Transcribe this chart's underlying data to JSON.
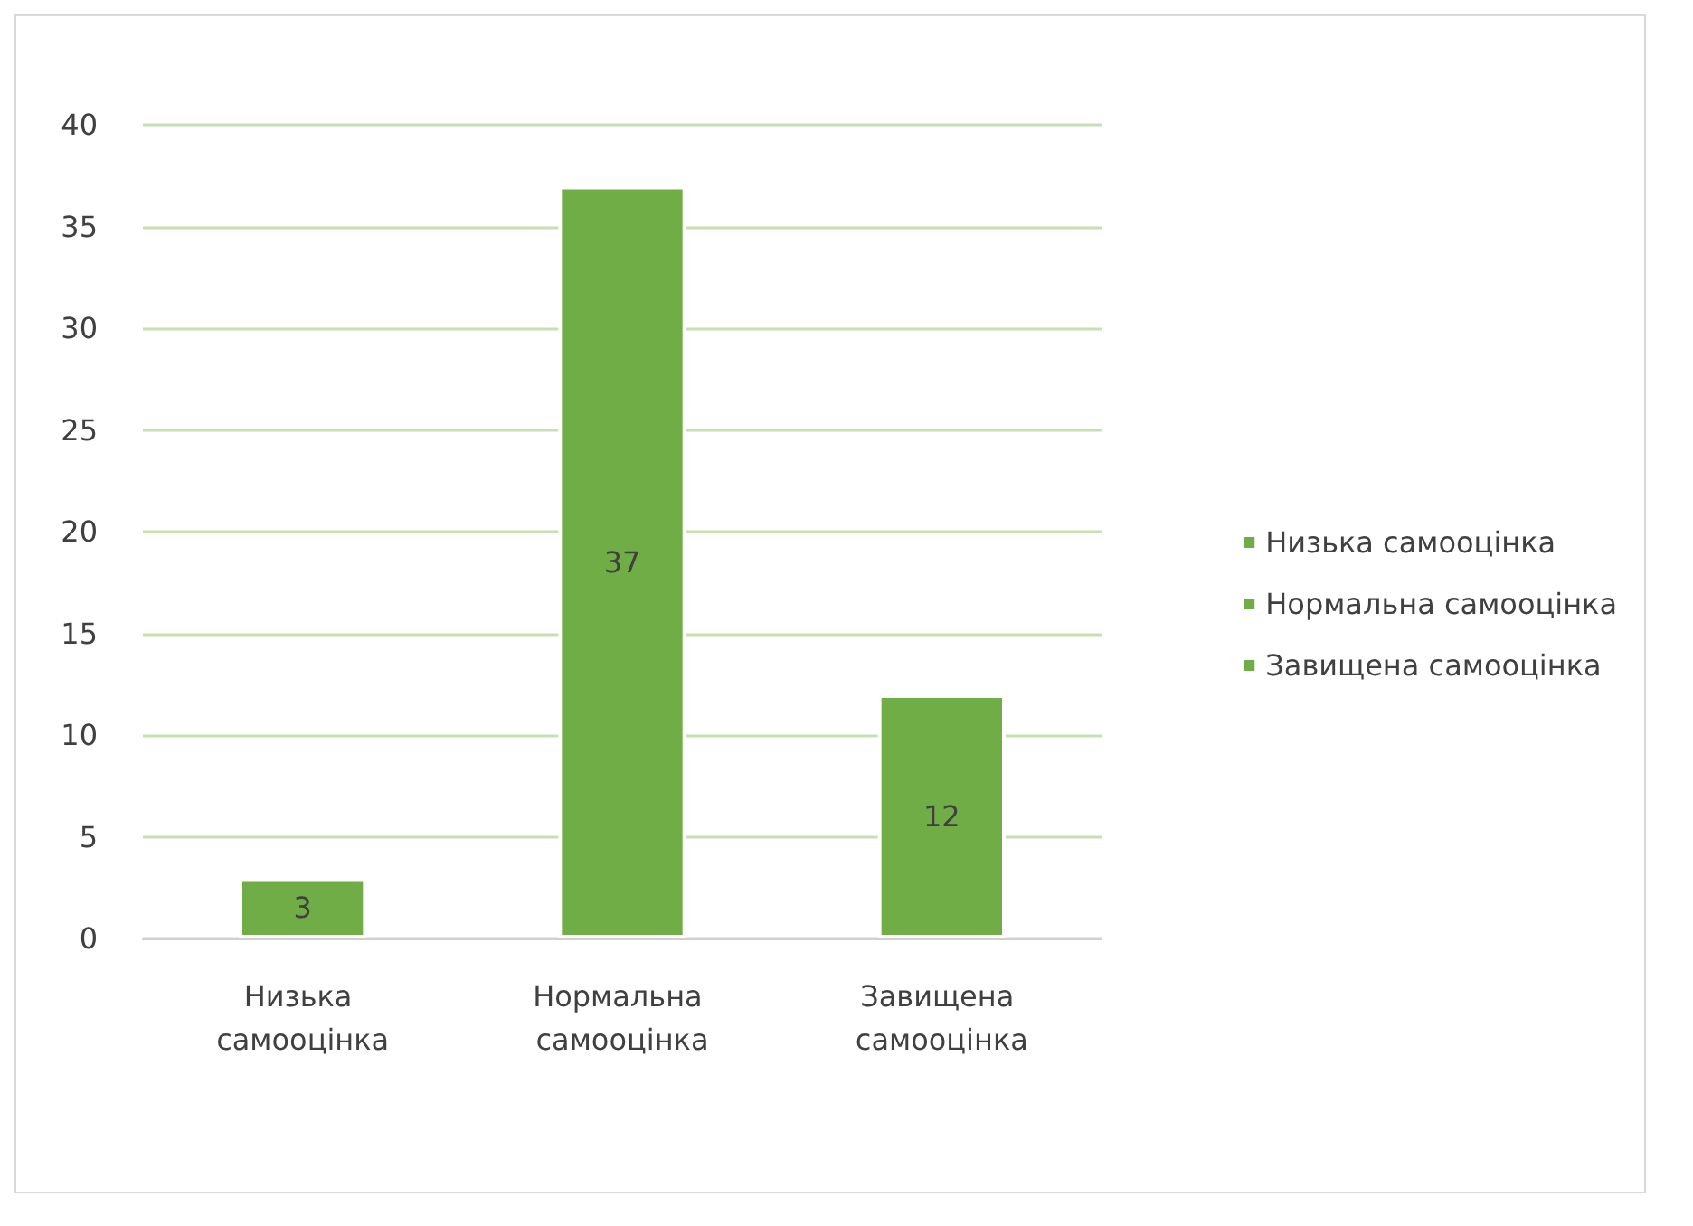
{
  "chart_data": {
    "type": "bar",
    "categories": [
      "Низька самооцінка",
      "Нормальна самооцінка",
      "Завищена самооцінка"
    ],
    "series": [
      {
        "name": "Низька самооцінка",
        "color": "#70ad47",
        "values": [
          3,
          null,
          null
        ]
      },
      {
        "name": "Нормальна самооцінка",
        "color": "#70ad47",
        "values": [
          null,
          37,
          null
        ]
      },
      {
        "name": "Завищена самооцінка",
        "color": "#70ad47",
        "values": [
          null,
          null,
          12
        ]
      }
    ],
    "ylim": [
      0,
      40
    ],
    "yticks": [
      0,
      5,
      10,
      15,
      20,
      25,
      30,
      35,
      40
    ],
    "grid": "y",
    "legend": "right",
    "data_labels": true
  }
}
